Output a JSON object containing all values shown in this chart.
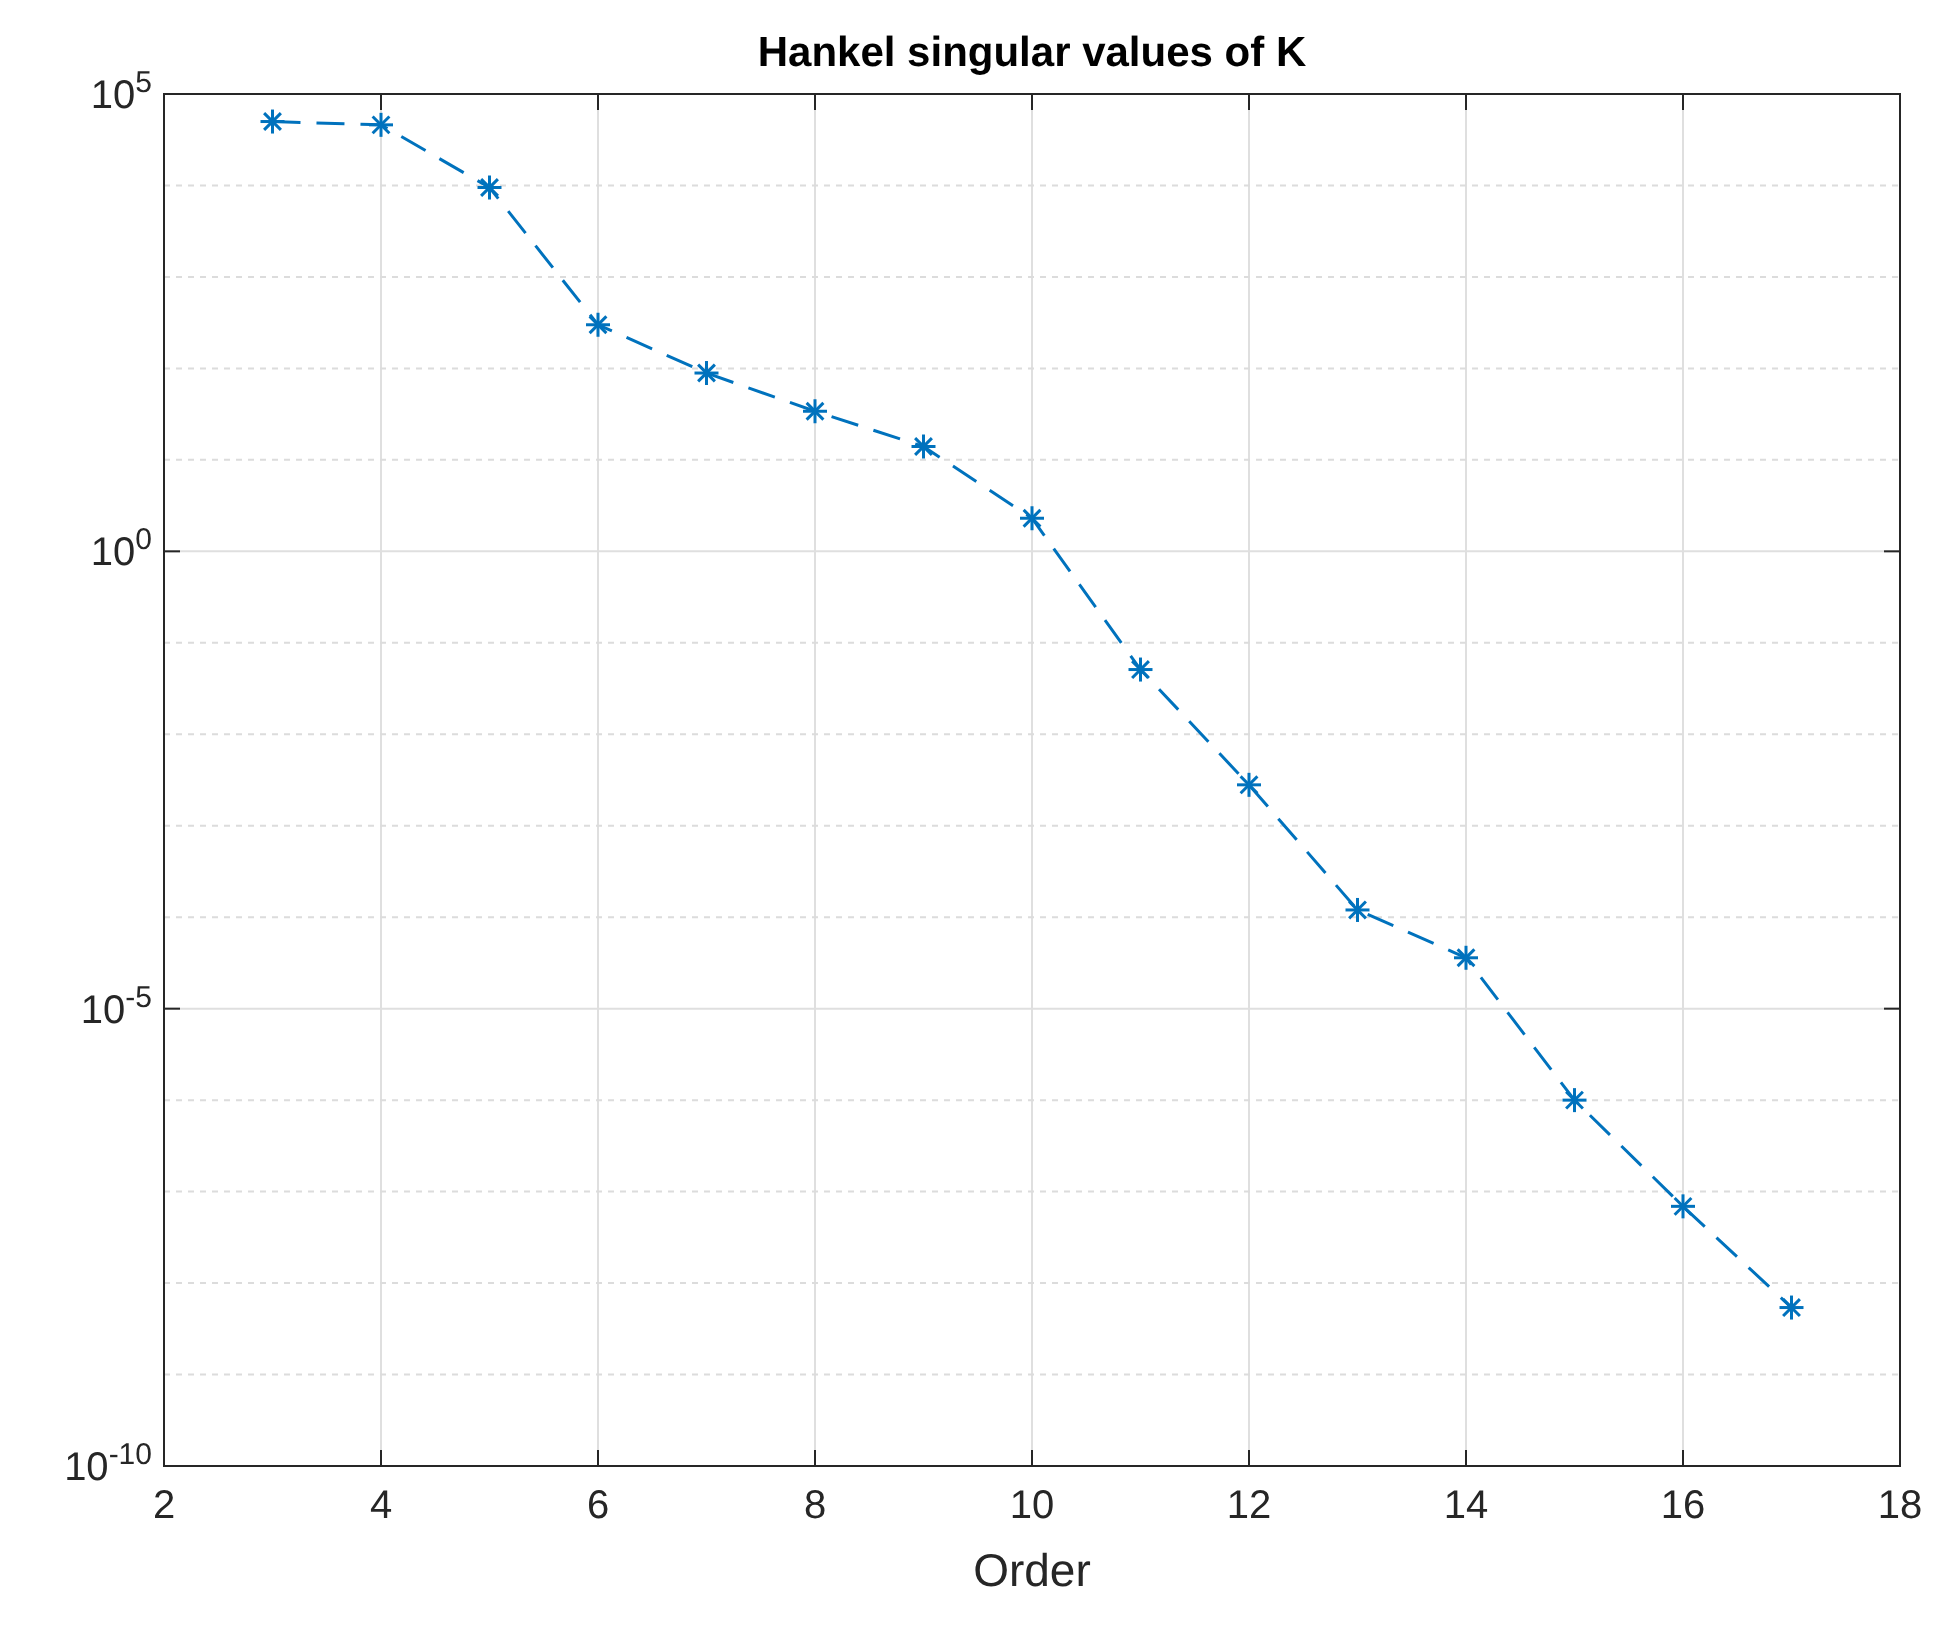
{
  "chart_data": {
    "type": "line",
    "title": "Hankel singular values of K",
    "xlabel": "Order",
    "x": [
      3,
      4,
      5,
      6,
      7,
      8,
      9,
      10,
      11,
      12,
      13,
      14,
      15,
      16,
      17
    ],
    "series": [
      {
        "color": "#0072bd",
        "values": [
          50000,
          46000,
          9500,
          300,
          89,
          34,
          14,
          2.3,
          0.051,
          0.0028,
          0.00012,
          3.6e-05,
          1e-06,
          6.9e-08,
          5.4e-09
        ]
      }
    ],
    "xlim": [
      2,
      18
    ],
    "xticks": [
      2,
      4,
      6,
      8,
      10,
      12,
      14,
      16,
      18
    ],
    "ylim": [
      1e-10,
      100000
    ],
    "yticks": [
      {
        "value": 1e-10,
        "label": "10$^{-10}$"
      },
      {
        "value": 1e-05,
        "label": "10$^{-5}$"
      },
      {
        "value": 1,
        "label": "10$^{0}$"
      },
      {
        "value": 100000,
        "label": "10$^{5}$"
      }
    ],
    "log": "y",
    "grid": true,
    "marker": "cross",
    "line_style": "dashed"
  }
}
